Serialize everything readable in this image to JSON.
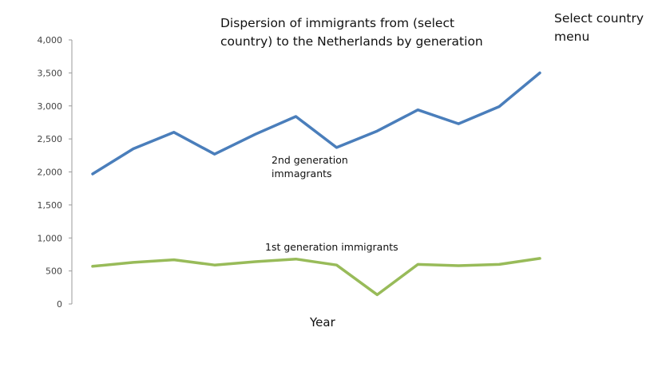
{
  "title": "Dispersion of immigrants from (select country) to the Netherlands by generation",
  "menu_label": "Select country menu",
  "chart_data": {
    "type": "line",
    "title": "Dispersion of immigrants from (select country) to the Netherlands by generation",
    "xlabel": "Year",
    "ylabel": "",
    "ylim": [
      0,
      4000
    ],
    "yticks": [
      0,
      500,
      1000,
      1500,
      2000,
      2500,
      3000,
      3500,
      4000
    ],
    "ytick_labels": [
      "0",
      "500",
      "1,000",
      "1,500",
      "2,000",
      "2,500",
      "3,000",
      "3,500",
      "4,000"
    ],
    "x": [
      1,
      2,
      3,
      4,
      5,
      6,
      7,
      8,
      9,
      10,
      11,
      12
    ],
    "grid": false,
    "series": [
      {
        "name": "2nd generation immagrants",
        "color": "#4a7ebb",
        "values": [
          1970,
          2350,
          2600,
          2270,
          2570,
          2840,
          2370,
          2620,
          2940,
          2730,
          2990,
          3500
        ]
      },
      {
        "name": "1st generation immigrants",
        "color": "#98bb59",
        "values": [
          570,
          630,
          670,
          590,
          640,
          680,
          590,
          140,
          600,
          580,
          600,
          690
        ]
      }
    ]
  }
}
